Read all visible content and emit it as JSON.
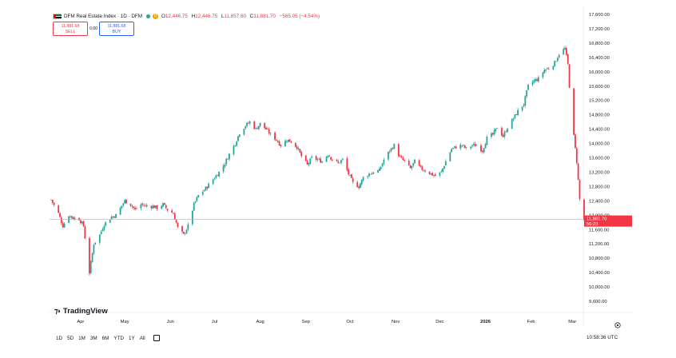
{
  "header": {
    "symbol_line": "DFM Real Estate Index · 1D · DFM",
    "ohlc": [
      {
        "k": "O",
        "v": "12,446.75"
      },
      {
        "k": "H",
        "v": "12,446.75"
      },
      {
        "k": "L",
        "v": "11,857.60"
      },
      {
        "k": "C",
        "v": "11,881.70"
      }
    ],
    "change": "−565.05 (−4.54%)"
  },
  "trade": {
    "sell_price": "11,881.68",
    "sell_label": "SELL",
    "spread": "0.00",
    "buy_price": "11,881.68",
    "buy_label": "BUY"
  },
  "brand": {
    "name": "TradingView",
    "icon": "tv-logo-icon"
  },
  "period_bar": {
    "items": [
      "1D",
      "5D",
      "1M",
      "3M",
      "6M",
      "YTD",
      "1Y",
      "All"
    ],
    "calendar_icon": "calendar-icon"
  },
  "clock": {
    "time": "10:58:36 UTC"
  },
  "colors": {
    "up": "#26a69a",
    "down": "#f23645",
    "last_price_bg": "#f23645"
  },
  "chart_data": {
    "type": "candlestick",
    "y_axis": {
      "ticks": [
        "17,600.00",
        "17,200.00",
        "16,800.00",
        "16,400.00",
        "16,000.00",
        "15,600.00",
        "15,200.00",
        "14,800.00",
        "14,400.00",
        "14,000.00",
        "13,600.00",
        "13,200.00",
        "12,800.00",
        "12,400.00",
        "12,000.00",
        "11,600.00",
        "11,200.00",
        "10,800.00",
        "10,400.00",
        "10,000.00",
        "9,600.00"
      ],
      "ylim": [
        9600,
        17600
      ],
      "position": "right"
    },
    "x_axis": {
      "ticks": [
        "Apr",
        "May",
        "Jun",
        "Jul",
        "Aug",
        "Sep",
        "Oct",
        "Nov",
        "Dec",
        "2026",
        "Feb",
        "Mar"
      ]
    },
    "last_price": {
      "value": 11881.7,
      "label": "11,881.70",
      "countdown": "56:23"
    },
    "settings_icon": "gear-icon",
    "close_path": [
      [
        "2025-03-12",
        12430
      ],
      [
        "2025-03-17",
        12050
      ],
      [
        "2025-03-20",
        11700
      ],
      [
        "2025-03-24",
        12000
      ],
      [
        "2025-03-27",
        11920
      ],
      [
        "2025-03-31",
        11900
      ],
      [
        "2025-04-03",
        11700
      ],
      [
        "2025-04-07",
        10400
      ],
      [
        "2025-04-10",
        11200
      ],
      [
        "2025-04-14",
        11450
      ],
      [
        "2025-04-17",
        11750
      ],
      [
        "2025-04-22",
        11950
      ],
      [
        "2025-04-25",
        12000
      ],
      [
        "2025-04-28",
        12200
      ],
      [
        "2025-05-01",
        12400
      ],
      [
        "2025-05-05",
        12300
      ],
      [
        "2025-05-08",
        12150
      ],
      [
        "2025-05-12",
        12300
      ],
      [
        "2025-05-16",
        12250
      ],
      [
        "2025-05-20",
        12250
      ],
      [
        "2025-05-23",
        12200
      ],
      [
        "2025-05-27",
        12300
      ],
      [
        "2025-05-30",
        12150
      ],
      [
        "2025-06-03",
        12050
      ],
      [
        "2025-06-06",
        11650
      ],
      [
        "2025-06-10",
        11450
      ],
      [
        "2025-06-13",
        11700
      ],
      [
        "2025-06-17",
        12300
      ],
      [
        "2025-06-20",
        12550
      ],
      [
        "2025-06-24",
        12700
      ],
      [
        "2025-06-27",
        12850
      ],
      [
        "2025-07-01",
        13050
      ],
      [
        "2025-07-04",
        13200
      ],
      [
        "2025-07-08",
        13450
      ],
      [
        "2025-07-11",
        13700
      ],
      [
        "2025-07-15",
        14000
      ],
      [
        "2025-07-18",
        14300
      ],
      [
        "2025-07-22",
        14500
      ],
      [
        "2025-07-25",
        14600
      ],
      [
        "2025-07-29",
        14400
      ],
      [
        "2025-08-01",
        14550
      ],
      [
        "2025-08-05",
        14400
      ],
      [
        "2025-08-08",
        14250
      ],
      [
        "2025-08-12",
        14100
      ],
      [
        "2025-08-15",
        13950
      ],
      [
        "2025-08-19",
        14100
      ],
      [
        "2025-08-22",
        14050
      ],
      [
        "2025-08-26",
        13900
      ],
      [
        "2025-08-29",
        13650
      ],
      [
        "2025-09-02",
        13400
      ],
      [
        "2025-09-05",
        13600
      ],
      [
        "2025-09-09",
        13550
      ],
      [
        "2025-09-12",
        13500
      ],
      [
        "2025-09-16",
        13700
      ],
      [
        "2025-09-19",
        13550
      ],
      [
        "2025-09-23",
        13450
      ],
      [
        "2025-09-26",
        13550
      ],
      [
        "2025-09-30",
        13150
      ],
      [
        "2025-10-03",
        12900
      ],
      [
        "2025-10-07",
        12800
      ],
      [
        "2025-10-10",
        13050
      ],
      [
        "2025-10-14",
        13150
      ],
      [
        "2025-10-17",
        13200
      ],
      [
        "2025-10-21",
        13250
      ],
      [
        "2025-10-24",
        13550
      ],
      [
        "2025-10-28",
        13800
      ],
      [
        "2025-10-31",
        13950
      ],
      [
        "2025-11-04",
        13600
      ],
      [
        "2025-11-07",
        13500
      ],
      [
        "2025-11-11",
        13300
      ],
      [
        "2025-11-14",
        13500
      ],
      [
        "2025-11-18",
        13300
      ],
      [
        "2025-11-21",
        13250
      ],
      [
        "2025-11-25",
        13150
      ],
      [
        "2025-11-28",
        13100
      ],
      [
        "2025-12-02",
        13200
      ],
      [
        "2025-12-05",
        13500
      ],
      [
        "2025-12-09",
        13850
      ],
      [
        "2025-12-12",
        13900
      ],
      [
        "2025-12-16",
        13950
      ],
      [
        "2025-12-19",
        13850
      ],
      [
        "2025-12-23",
        13950
      ],
      [
        "2025-12-26",
        13950
      ],
      [
        "2025-12-30",
        13800
      ],
      [
        "2026-01-02",
        14150
      ],
      [
        "2026-01-06",
        14250
      ],
      [
        "2026-01-09",
        14450
      ],
      [
        "2026-01-13",
        14200
      ],
      [
        "2026-01-16",
        14450
      ],
      [
        "2026-01-20",
        14700
      ],
      [
        "2026-01-23",
        14900
      ],
      [
        "2026-01-27",
        15100
      ],
      [
        "2026-01-30",
        15600
      ],
      [
        "2026-02-03",
        15750
      ],
      [
        "2026-02-06",
        15800
      ],
      [
        "2026-02-10",
        16050
      ],
      [
        "2026-02-13",
        16100
      ],
      [
        "2026-02-17",
        16250
      ],
      [
        "2026-02-20",
        16500
      ],
      [
        "2026-02-24",
        16650
      ],
      [
        "2026-02-26",
        16200
      ],
      [
        "2026-02-28",
        15000
      ],
      [
        "2026-03-02",
        14200
      ],
      [
        "2026-03-04",
        13500
      ],
      [
        "2026-03-06",
        12447
      ],
      [
        "2026-03-09",
        11882
      ]
    ]
  }
}
